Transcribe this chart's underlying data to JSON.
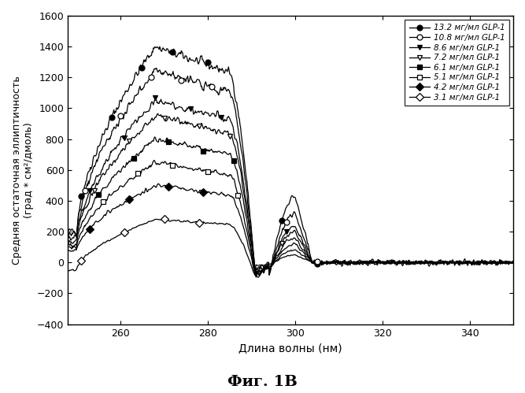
{
  "title": "Фиг. 1В",
  "xlabel": "Длина волны (нм)",
  "ylabel": "Средняя остаточная эллиптичность\n(град * см²/дмоль)",
  "xlim": [
    248,
    350
  ],
  "ylim": [
    -400,
    1600
  ],
  "yticks": [
    -400,
    -200,
    0,
    200,
    400,
    600,
    800,
    1000,
    1200,
    1400,
    1600
  ],
  "xticks": [
    260,
    280,
    300,
    320,
    340
  ],
  "legend_labels": [
    "13.2 мг/мл GLP-1",
    "10.8 мг/мл GLP-1",
    "8.6 мг/мл GLP-1",
    "7.2 мг/мл GLP-1",
    "6.1 мг/мл GLP-1",
    "5.1 мг/мл GLP-1",
    "4.2 мг/мл GLP-1",
    "3.1 мг/мл GLP-1"
  ],
  "concentrations": [
    13.2,
    10.8,
    8.6,
    7.2,
    6.1,
    5.1,
    4.2,
    3.1
  ],
  "peak_values": [
    1400,
    1250,
    1050,
    950,
    800,
    650,
    500,
    280
  ],
  "start_values": [
    200,
    180,
    160,
    140,
    120,
    100,
    80,
    -50
  ],
  "second_peak": [
    430,
    320,
    240,
    200,
    160,
    120,
    80,
    50
  ],
  "marker_styles": [
    "o",
    "o",
    "v",
    "v",
    "s",
    "s",
    "D",
    "D"
  ],
  "marker_filled": [
    true,
    false,
    true,
    false,
    true,
    false,
    true,
    false
  ],
  "background_color": "#ffffff"
}
